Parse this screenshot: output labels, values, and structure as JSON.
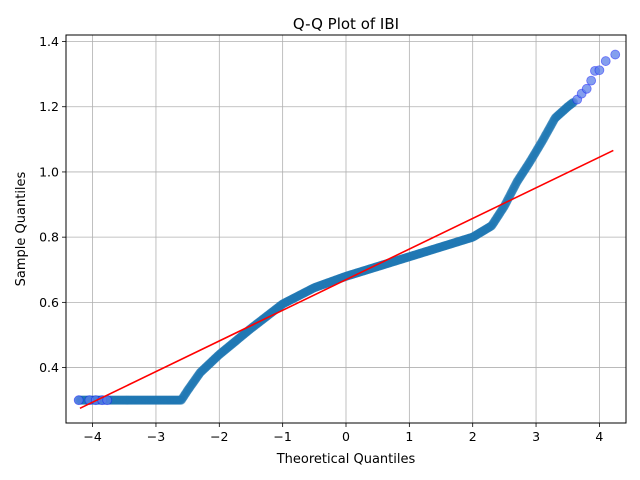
{
  "chart_data": {
    "type": "scatter",
    "title": "Q-Q Plot of IBI",
    "xlabel": "Theoretical Quantiles",
    "ylabel": "Sample Quantiles",
    "xlim": [
      -4.42,
      4.42
    ],
    "ylim": [
      0.23,
      1.42
    ],
    "x_ticks": [
      -4,
      -3,
      -2,
      -1,
      0,
      1,
      2,
      3,
      4
    ],
    "y_ticks": [
      0.4,
      0.6,
      0.8,
      1.0,
      1.2,
      1.4
    ],
    "x_tick_labels": [
      "−4",
      "−3",
      "−2",
      "−1",
      "0",
      "1",
      "2",
      "3",
      "4"
    ],
    "y_tick_labels": [
      "0.4",
      "0.6",
      "0.8",
      "1.0",
      "1.2",
      "1.4"
    ],
    "grid": true,
    "marker_color": "#1f77b4",
    "marker_edge_color": "#0000ff",
    "line_color": "#ff0000",
    "reference_line": {
      "x": [
        -4.2,
        4.22
      ],
      "y": [
        0.275,
        1.066
      ]
    },
    "quantile_curve": [
      [
        -4.22,
        0.3
      ],
      [
        -2.6,
        0.3
      ],
      [
        -2.5,
        0.33
      ],
      [
        -2.3,
        0.385
      ],
      [
        -2.0,
        0.44
      ],
      [
        -1.5,
        0.52
      ],
      [
        -1.0,
        0.595
      ],
      [
        -0.5,
        0.645
      ],
      [
        0.0,
        0.68
      ],
      [
        0.5,
        0.71
      ],
      [
        1.0,
        0.74
      ],
      [
        1.5,
        0.77
      ],
      [
        2.0,
        0.8
      ],
      [
        2.3,
        0.835
      ],
      [
        2.5,
        0.895
      ],
      [
        2.7,
        0.97
      ],
      [
        2.9,
        1.03
      ],
      [
        3.1,
        1.095
      ],
      [
        3.3,
        1.165
      ],
      [
        3.5,
        1.2
      ],
      [
        3.6,
        1.215
      ]
    ],
    "outlier_points": [
      {
        "x": -4.22,
        "y": 0.3
      },
      {
        "x": -4.05,
        "y": 0.3
      },
      {
        "x": -3.95,
        "y": 0.3
      },
      {
        "x": -3.85,
        "y": 0.3
      },
      {
        "x": -3.77,
        "y": 0.3
      },
      {
        "x": 3.65,
        "y": 1.222
      },
      {
        "x": 3.72,
        "y": 1.24
      },
      {
        "x": 3.8,
        "y": 1.255
      },
      {
        "x": 3.87,
        "y": 1.28
      },
      {
        "x": 3.93,
        "y": 1.31
      },
      {
        "x": 4.0,
        "y": 1.312
      },
      {
        "x": 4.1,
        "y": 1.34
      },
      {
        "x": 4.25,
        "y": 1.36
      }
    ]
  }
}
